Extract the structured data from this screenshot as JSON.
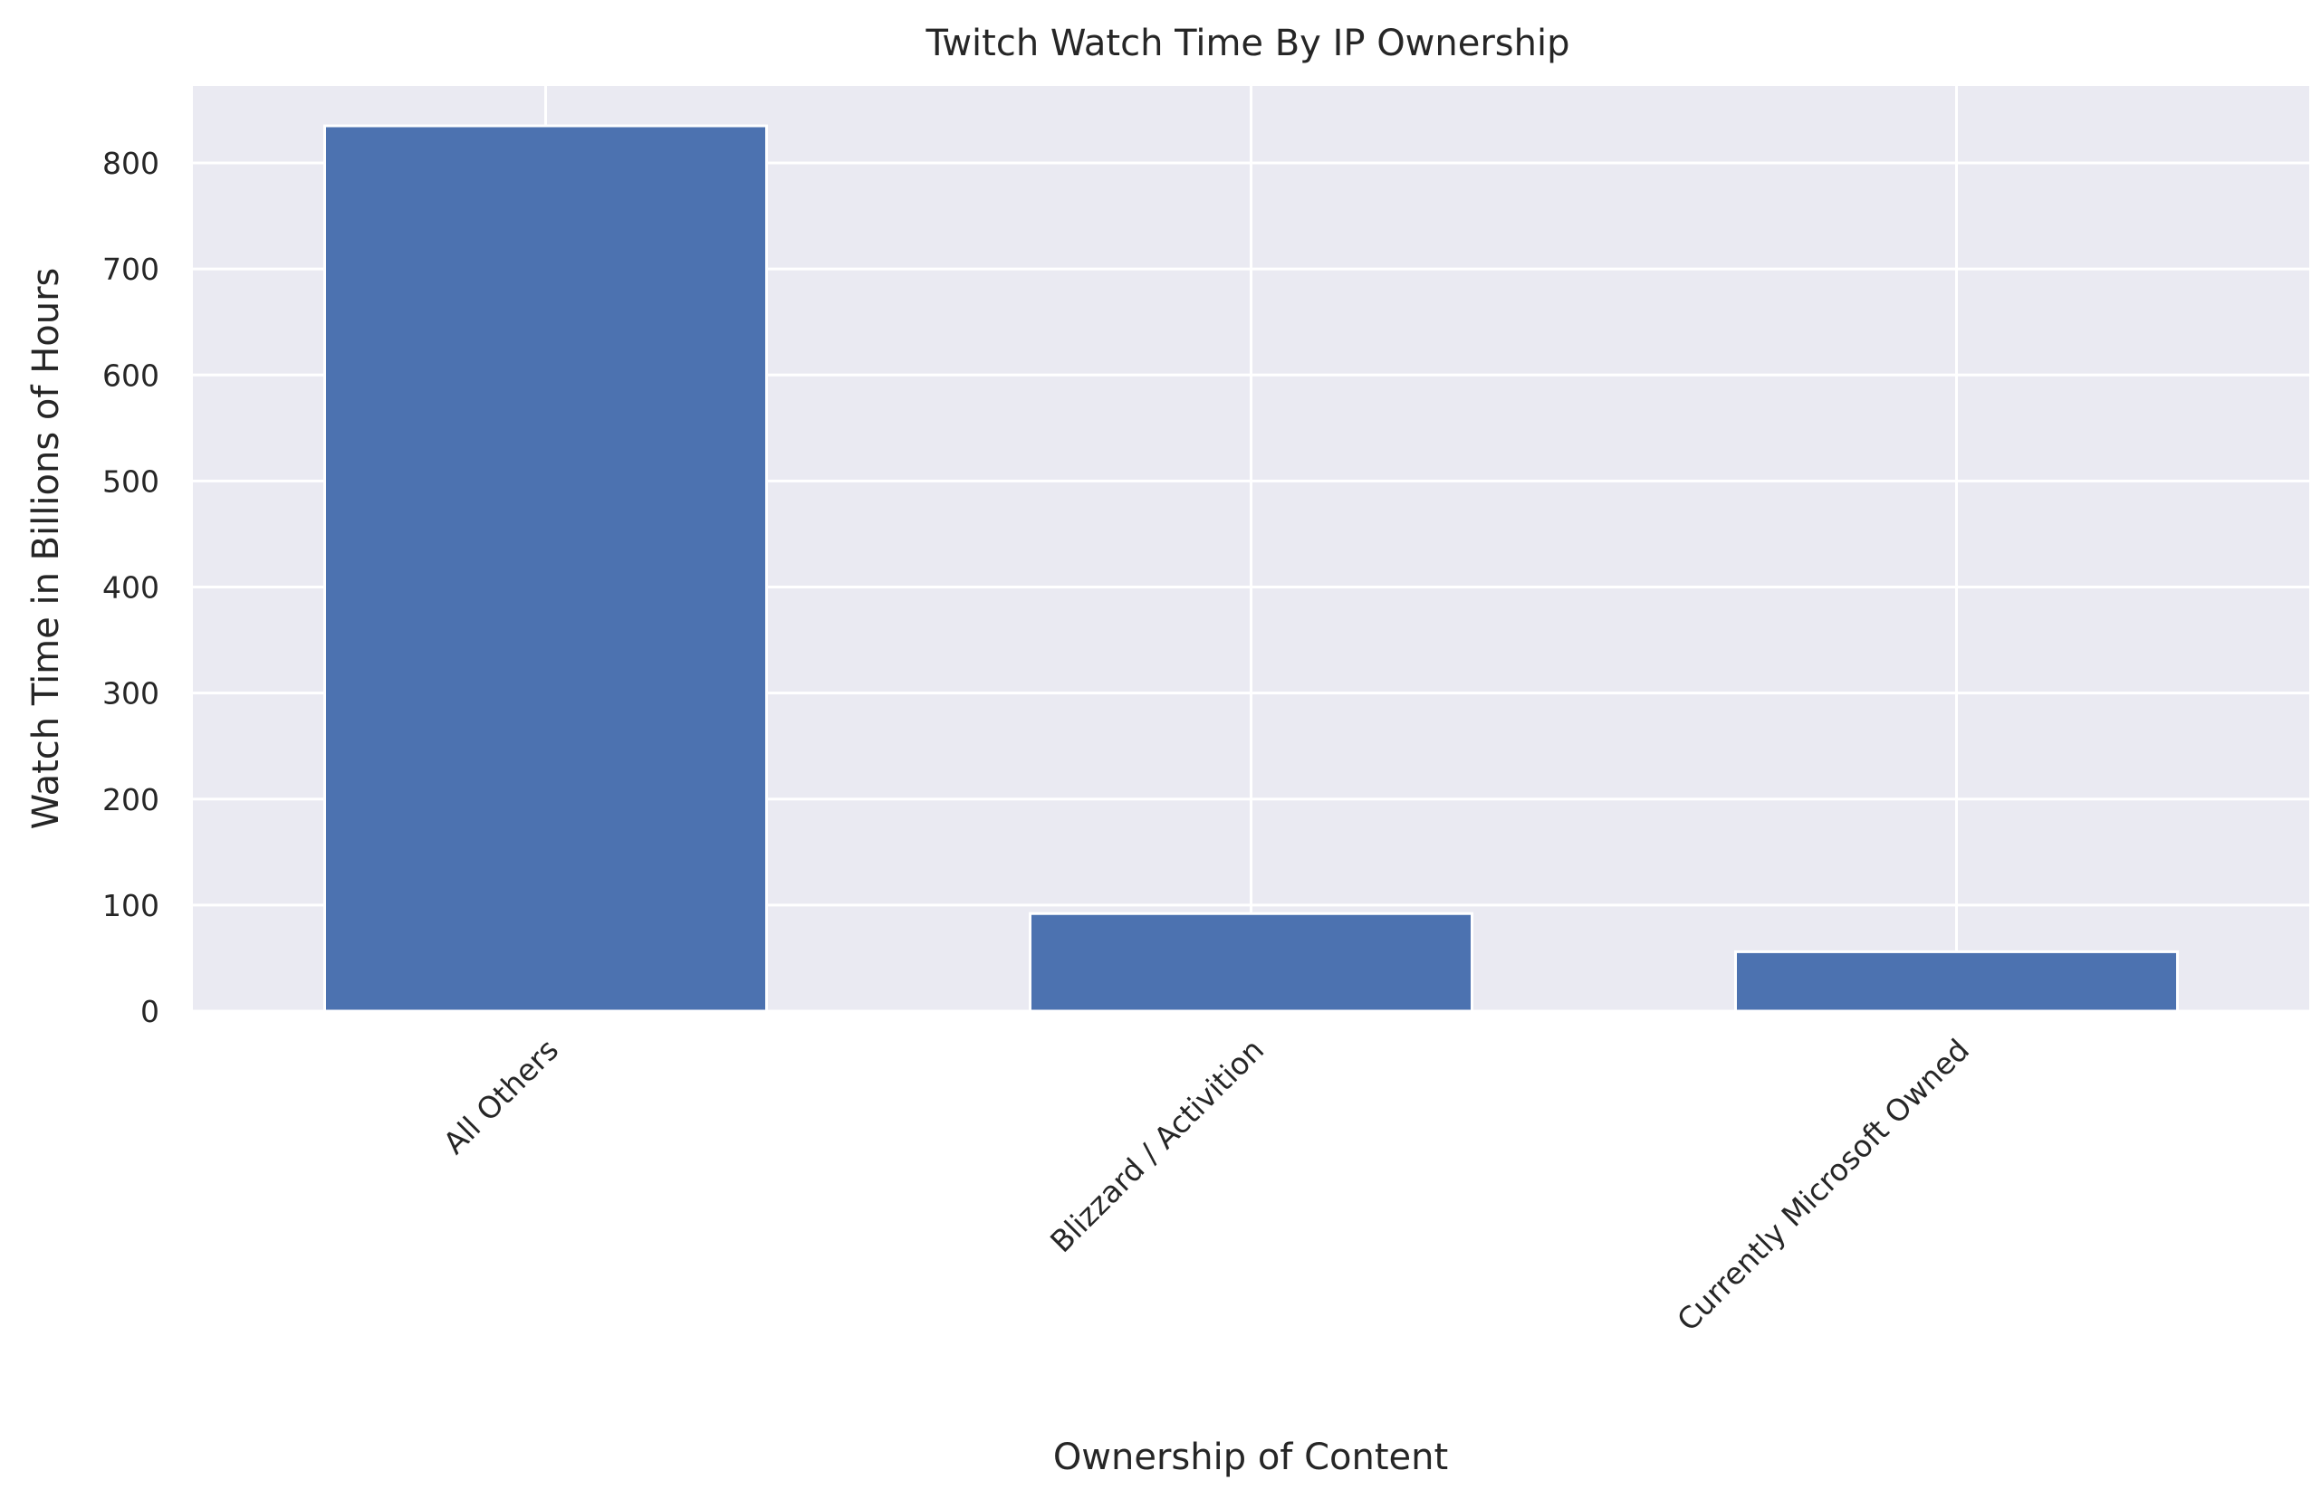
{
  "chart_data": {
    "type": "bar",
    "title": "Twitch Watch Time By IP Ownership",
    "xlabel": "Ownership of Content",
    "ylabel": "Watch Time in Billions of Hours",
    "categories": [
      "All Others",
      "Blizzard / Activition",
      "Currently Microsoft Owned"
    ],
    "values": [
      835,
      92,
      56
    ],
    "ylim": [
      0,
      875
    ],
    "yticks": [
      "0",
      "100",
      "200",
      "300",
      "400",
      "500",
      "600",
      "700",
      "800"
    ],
    "grid": true,
    "legend": "none",
    "colors": {
      "bar": "#4c72b0",
      "background": "#eaeaf2",
      "grid": "#ffffff",
      "text": "#262626"
    }
  }
}
